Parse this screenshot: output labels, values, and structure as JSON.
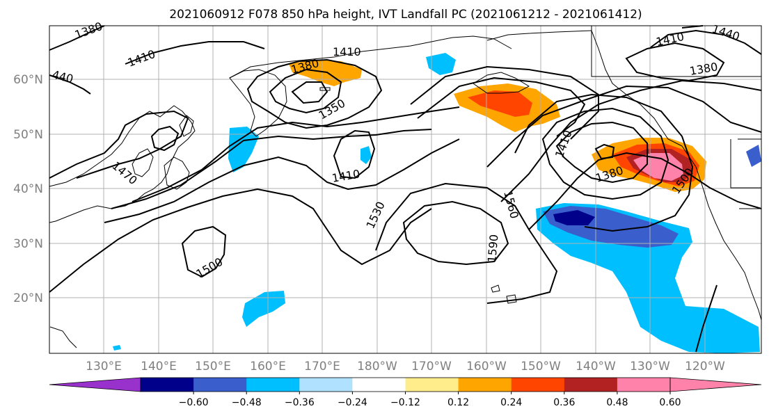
{
  "title": "2021060912 F078 850 hPa height, IVT Landfall PC (2021061212 - 2021061412)",
  "lat_labels": [
    "20°N",
    "30°N",
    "40°N",
    "50°N",
    "60°N"
  ],
  "lon_labels": [
    "130°E",
    "140°E",
    "150°E",
    "160°E",
    "170°E",
    "180°W",
    "170°W",
    "160°W",
    "150°W",
    "140°W",
    "130°W",
    "120°W"
  ],
  "contour_labels": [
    "1380",
    "1410",
    "440",
    "1410",
    "1380",
    "1350",
    "1410",
    "1410",
    "1380",
    "1440",
    "1470",
    "1410",
    "1380",
    "1530",
    "1560",
    "1590",
    "1500",
    "1500"
  ],
  "colorbar": {
    "ticks": [
      "−0.60",
      "−0.48",
      "−0.36",
      "−0.24",
      "−0.12",
      "0.12",
      "0.24",
      "0.36",
      "0.48",
      "0.60"
    ],
    "colors": [
      "#9932cc",
      "#00008b",
      "#3a5fcd",
      "#00bfff",
      "#b0e2ff",
      "#ffffff",
      "#ffec8b",
      "#ffa500",
      "#ff4500",
      "#b22222",
      "#ff82ab",
      "#ff82ab"
    ]
  }
}
